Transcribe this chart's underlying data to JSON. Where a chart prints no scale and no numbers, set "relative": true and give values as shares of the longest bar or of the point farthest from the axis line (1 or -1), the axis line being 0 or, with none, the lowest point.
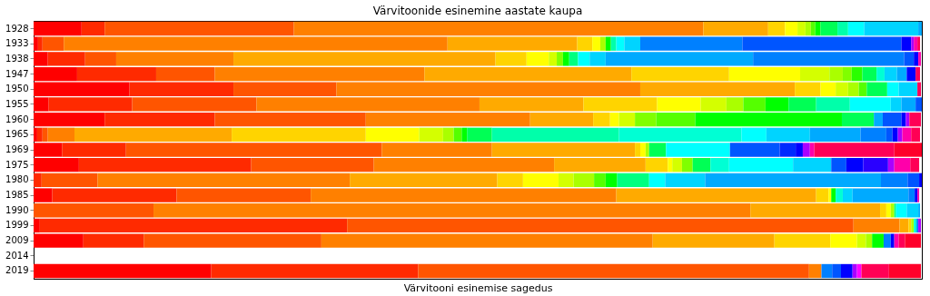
{
  "chart_data": {
    "type": "bar",
    "orientation": "horizontal",
    "stacked": true,
    "relative": true,
    "title": "Värvitoonide esinemine aastate kaupa",
    "xlabel": "Värvitooni esinemise sagedus",
    "categories": [
      "1928",
      "1933",
      "1938",
      "1947",
      "1950",
      "1955",
      "1960",
      "1965",
      "1969",
      "1975",
      "1980",
      "1985",
      "1990",
      "1999",
      "2009",
      "2014",
      "2019"
    ],
    "grid": false,
    "series": [
      {
        "values": [
          0.054,
          0.005,
          0.016,
          0.049,
          0.108,
          0.017,
          0.08,
          0.004,
          0.032,
          0.051,
          0.009,
          0.021,
          0.135,
          0.007,
          0.056,
          null,
          0.2
        ],
        "colors": [
          "#ff0000",
          "#ff0000",
          "#ff0000",
          "#ff0000",
          "#ff0000",
          "#ff0000",
          "#ff0000",
          "#ff0000",
          "#ff0000",
          "#ff0000",
          "#ff2a00",
          "#ff0000",
          "#ff5500",
          "#ff0000",
          "#ff0000",
          null,
          "#ff0000"
        ]
      },
      {
        "values": [
          0.026,
          0.005,
          0.042,
          0.089,
          0.117,
          0.094,
          0.124,
          0.006,
          0.072,
          0.194,
          0.063,
          0.14,
          0.672,
          0.346,
          0.068,
          null,
          0.233
        ],
        "colors": [
          "#ff2a00",
          "#ff2a00",
          "#ff2a00",
          "#ff2a00",
          "#ff2a00",
          "#ff2a00",
          "#ff2a00",
          "#ff2a00",
          "#ff2a00",
          "#ff2a00",
          "#ff5500",
          "#ff2a00",
          "#ff8000",
          "#ff2a00",
          "#ff2a00",
          null,
          "#ff2a00"
        ]
      },
      {
        "values": [
          0.213,
          0.024,
          0.035,
          0.066,
          0.116,
          0.14,
          0.17,
          0.006,
          0.288,
          0.138,
          0.284,
          0.151,
          0.146,
          0.57,
          0.2,
          null,
          0.44
        ],
        "colors": [
          "#ff5500",
          "#ff5500",
          "#ff5500",
          "#ff5500",
          "#ff5500",
          "#ff5500",
          "#ff5500",
          "#ff5500",
          "#ff5500",
          "#ff5500",
          "#ff8000",
          "#ff5500",
          "#ffaa00",
          "#ff5500",
          "#ff5500",
          null,
          "#ff5500"
        ]
      },
      {
        "values": [
          0.461,
          0.432,
          0.132,
          0.236,
          0.342,
          0.251,
          0.185,
          0.03,
          0.124,
          0.203,
          0.166,
          0.344,
          0.007,
          0.052,
          0.373,
          null,
          0.014
        ],
        "colors": [
          "#ff8000",
          "#ff8000",
          "#ff8000",
          "#ff8000",
          "#ff8000",
          "#ff8000",
          "#ff8000",
          "#ff8000",
          "#ff8000",
          "#ff8000",
          "#ffaa00",
          "#ff8000",
          "#ffd400",
          "#ff8000",
          "#ff8000",
          null,
          "#ff8000"
        ]
      },
      {
        "values": [
          0.073,
          0.146,
          0.295,
          0.233,
          0.174,
          0.117,
          0.071,
          0.177,
          0.161,
          0.103,
          0.029,
          0.225,
          0.005,
          0.01,
          0.137,
          null,
          0.012
        ],
        "colors": [
          "#ffaa00",
          "#ffaa00",
          "#ffaa00",
          "#ffaa00",
          "#ffaa00",
          "#ffaa00",
          "#ffaa00",
          "#ffaa00",
          "#ffaa00",
          "#ffaa00",
          "#ffd400",
          "#ffaa00",
          "#ffff00",
          "#ffaa00",
          "#ffaa00",
          null,
          "#0080ff"
        ]
      },
      {
        "values": [
          0.019,
          0.017,
          0.035,
          0.11,
          0.029,
          0.083,
          0.019,
          0.151,
          0.006,
          0.025,
          0.04,
          0.014,
          0.004,
          0.003,
          0.063,
          null,
          0.01
        ],
        "colors": [
          "#ffd400",
          "#ffd400",
          "#ffd400",
          "#ffd400",
          "#ffd400",
          "#ffd400",
          "#ffd400",
          "#ffd400",
          "#ffd400",
          "#ffd400",
          "#ffff00",
          "#ffd400",
          "#aaff00",
          "#ffd400",
          "#ffd400",
          null,
          "#0055ff"
        ]
      },
      {
        "values": [
          0.014,
          0.009,
          0.025,
          0.08,
          0.017,
          0.049,
          0.01,
          0.06,
          0.006,
          0.005,
          0.017,
          0.003,
          0.002,
          0.003,
          0.03,
          null,
          0.013
        ],
        "colors": [
          "#ffff00",
          "#ffff00",
          "#ffff00",
          "#ffff00",
          "#ffff00",
          "#ffff00",
          "#ffff00",
          "#ffff00",
          "#ffff00",
          "#ffff00",
          "#d4ff00",
          "#ffff00",
          "#00ff80",
          "#aaff00",
          "#ffff00",
          null,
          "#0000ff"
        ]
      },
      {
        "values": [
          0.009,
          0.006,
          0.009,
          0.033,
          0.014,
          0.029,
          0.018,
          0.027,
          0.004,
          0.011,
          0.023,
          0.005,
          0.012,
          0.003,
          0.01,
          null,
          0.005
        ],
        "colors": [
          "#d4ff00",
          "#aaff00",
          "#d4ff00",
          "#d4ff00",
          "#d4ff00",
          "#d4ff00",
          "#d4ff00",
          "#d4ff00",
          "#aaff00",
          "#d4ff00",
          "#aaff00",
          "#00ff00",
          "#00ffff",
          "#00ffd4",
          "#d4ff00",
          null,
          "#aa00ff"
        ]
      },
      {
        "values": [
          0.006,
          0.006,
          0.007,
          0.015,
          0.012,
          0.019,
          0.024,
          0.012,
          0.019,
          0.012,
          0.013,
          0.008,
          0.013,
          0.002,
          0.007,
          null,
          0.005
        ],
        "colors": [
          "#aaff00",
          "#00ff00",
          "#80ff00",
          "#aaff00",
          "#aaff00",
          "#aaff00",
          "#80ff00",
          "#aaff00",
          "#00ff55",
          "#80ff00",
          "#55ff00",
          "#00ffd4",
          "#00d4ff",
          "#0080ff",
          "#aaff00",
          null,
          "#ff00ff"
        ]
      },
      {
        "values": [
          0.005,
          0.006,
          0.007,
          0.01,
          0.009,
          0.025,
          0.044,
          0.009,
          0.072,
          0.02,
          0.013,
          0.011,
          0.002,
          0.003,
          0.013,
          null,
          0.031
        ],
        "colors": [
          "#55ff00",
          "#00ffaa",
          "#00ff00",
          "#80ff00",
          "#55ff00",
          "#55ff00",
          "#55ff00",
          "#55ff00",
          "#00ffff",
          "#00ff55",
          "#00ff00",
          "#00d4ff",
          "#00aaff",
          "#aa00ff",
          "#00ff00",
          null,
          "#ff0055"
        ]
      },
      {
        "values": [
          0.006,
          0.009,
          0.01,
          0.012,
          0.023,
          0.026,
          0.165,
          0.006,
          0.056,
          0.021,
          0.036,
          0.063,
          null,
          null,
          0.008,
          null,
          0.036
        ],
        "colors": [
          "#00ff00",
          "#00ffff",
          "#00ff80",
          "#2aff00",
          "#00ff55",
          "#00ff00",
          "#00ff00",
          "#00ff00",
          "#0055ff",
          "#00ffd4",
          "#00ff80",
          "#00aaff",
          null,
          null,
          "#0080ff",
          null,
          "#ff002a"
        ]
      },
      {
        "values": [
          0.019,
          0.018,
          0.013,
          0.016,
          0.013,
          0.031,
          0.036,
          0.028,
          0.018,
          0.072,
          0.018,
          0.007,
          null,
          null,
          0.004,
          null,
          null
        ],
        "colors": [
          "#00ff55",
          "#00d4ff",
          "#00ffff",
          "#00ff55",
          "#00ffff",
          "#00ff55",
          "#00ff55",
          "#00ff55",
          "#002aff",
          "#00ffff",
          "#00ffff",
          "#0080ff",
          null,
          null,
          "#0000ff",
          null,
          null
        ]
      },
      {
        "values": [
          0.012,
          0.115,
          0.018,
          0.009,
          0.021,
          0.038,
          0.01,
          0.143,
          0.008,
          0.043,
          0.045,
          0.003,
          null,
          null,
          0.005,
          null,
          null
        ],
        "colors": [
          "#00ffaa",
          "#0080ff",
          "#00d4ff",
          "#00ffd4",
          "#00d4ff",
          "#00ffaa",
          "#00aaff",
          "#00ffaa",
          "#0000ff",
          "#00d4ff",
          "#00d4ff",
          "#0000ff",
          null,
          null,
          "#ff00aa",
          null,
          null
        ]
      },
      {
        "values": [
          0.018,
          0.179,
          0.166,
          0.014,
          0.004,
          0.046,
          0.021,
          0.138,
          0.008,
          0.017,
          0.198,
          0.002,
          null,
          null,
          0.007,
          null,
          null
        ],
        "colors": [
          "#00ffff",
          "#0055ff",
          "#00aaff",
          "#00d4ff",
          "#ff0055",
          "#00ffff",
          "#0055ff",
          "#00ffd4",
          "#aa00ff",
          "#0055ff",
          "#00aaff",
          "#ff00aa",
          null,
          null,
          "#ff0055",
          null,
          null
        ]
      },
      {
        "values": [
          0.061,
          0.011,
          0.17,
          0.011,
          null,
          0.012,
          0.005,
          0.028,
          0.005,
          0.019,
          0.03,
          null,
          null,
          null,
          0.018,
          null,
          null
        ],
        "colors": [
          "#00d4ff",
          "#0000ff",
          "#0080ff",
          "#00aaff",
          null,
          "#00d4ff",
          "#0000ff",
          "#00ffff",
          "#ff00aa",
          "#0000ff",
          "#0080ff",
          null,
          null,
          null,
          "#ff002a",
          null,
          null
        ]
      },
      {
        "values": [
          0.004,
          0.003,
          0.011,
          0.01,
          null,
          0.016,
          0.004,
          0.049,
          0.09,
          0.028,
          0.013,
          null,
          null,
          null,
          null,
          null,
          null
        ],
        "colors": [
          "#00aaff",
          "#aa00ff",
          "#0055ff",
          "#0000ff",
          null,
          "#00aaff",
          "#aa00ff",
          "#00d4ff",
          "#ff0055",
          "#2a00ff",
          "#0055ff",
          null,
          null,
          null,
          null,
          null,
          null
        ]
      },
      {
        "values": [
          null,
          0.004,
          0.005,
          0.005,
          null,
          0.007,
          0.013,
          0.057,
          0.031,
          0.007,
          0.003,
          null,
          null,
          null,
          null,
          null,
          null
        ],
        "colors": [
          null,
          "#ff00aa",
          "#0000ff",
          "#ff0055",
          null,
          "#0055ff",
          "#ff0055",
          "#00aaff",
          "#ff002a",
          "#aa00ff",
          "#0000ff",
          null,
          null,
          null,
          null,
          null,
          null
        ]
      },
      {
        "values": [
          null,
          0.003,
          0.003,
          null,
          null,
          null,
          null,
          0.029,
          null,
          0.018,
          null,
          null,
          null,
          null,
          null,
          null,
          null
        ],
        "colors": [
          null,
          "#ff0055",
          "#ff00aa",
          null,
          null,
          null,
          null,
          "#0080ff",
          null,
          "#ff00aa",
          null,
          null,
          null,
          null,
          null,
          null,
          null
        ]
      },
      {
        "values": [
          null,
          null,
          null,
          null,
          null,
          null,
          null,
          0.007,
          null,
          0.01,
          null,
          null,
          null,
          null,
          null,
          null,
          null
        ],
        "colors": [
          null,
          null,
          null,
          null,
          null,
          null,
          null,
          "#0055ff",
          null,
          "#ff0055",
          null,
          null,
          null,
          null,
          null,
          null,
          null
        ]
      },
      {
        "values": [
          null,
          null,
          null,
          null,
          null,
          null,
          null,
          0.006,
          null,
          null,
          null,
          null,
          null,
          null,
          null,
          null,
          null
        ],
        "colors": [
          null,
          null,
          null,
          null,
          null,
          null,
          null,
          "#0000ff",
          null,
          null,
          null,
          null,
          null,
          null,
          null,
          null,
          null
        ]
      },
      {
        "values": [
          null,
          null,
          null,
          null,
          null,
          null,
          null,
          0.005,
          null,
          null,
          null,
          null,
          null,
          null,
          null,
          null,
          null
        ],
        "colors": [
          null,
          null,
          null,
          null,
          null,
          null,
          null,
          "#aa00ff",
          null,
          null,
          null,
          null,
          null,
          null,
          null,
          null,
          null
        ]
      },
      {
        "values": [
          null,
          null,
          null,
          null,
          null,
          null,
          null,
          0.01,
          null,
          null,
          null,
          null,
          null,
          null,
          null,
          null,
          null
        ],
        "colors": [
          null,
          null,
          null,
          null,
          null,
          null,
          null,
          "#ff00aa",
          null,
          null,
          null,
          null,
          null,
          null,
          null,
          null,
          null
        ]
      },
      {
        "values": [
          null,
          null,
          null,
          null,
          null,
          null,
          null,
          0.01,
          null,
          null,
          null,
          null,
          null,
          null,
          null,
          null,
          null
        ],
        "colors": [
          null,
          null,
          null,
          null,
          null,
          null,
          null,
          "#ff0055",
          null,
          null,
          null,
          null,
          null,
          null,
          null,
          null,
          null
        ]
      }
    ]
  }
}
